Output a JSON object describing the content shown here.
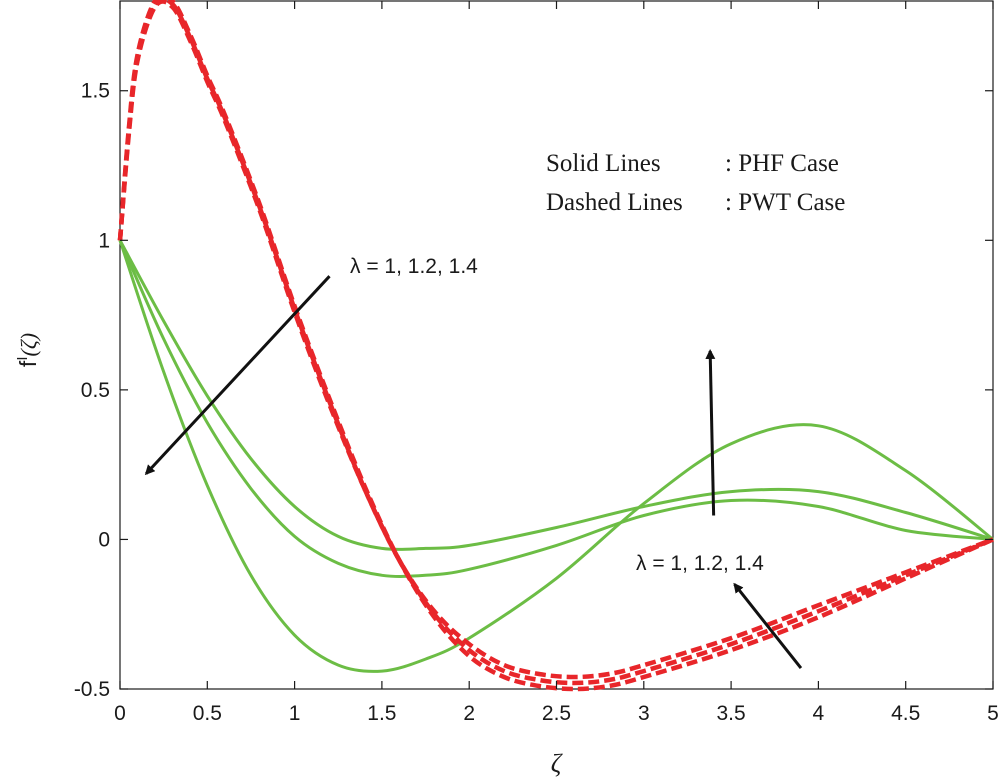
{
  "chart_data": {
    "type": "line",
    "title": "",
    "xlabel": "ζ",
    "ylabel": "f'(ζ)",
    "ylabel_base": "f",
    "ylabel_sup": "I",
    "ylabel_arg": "(ζ)",
    "xlim": [
      0,
      5
    ],
    "ylim": [
      -0.5,
      1.8
    ],
    "xticks": [
      {
        "value": 0,
        "label": "0"
      },
      {
        "value": 0.5,
        "label": "0.5"
      },
      {
        "value": 1,
        "label": "1"
      },
      {
        "value": 1.5,
        "label": "1.5"
      },
      {
        "value": 2,
        "label": "2"
      },
      {
        "value": 2.5,
        "label": "2.5"
      },
      {
        "value": 3,
        "label": "3"
      },
      {
        "value": 3.5,
        "label": "3.5"
      },
      {
        "value": 4,
        "label": "4"
      },
      {
        "value": 4.5,
        "label": "4.5"
      },
      {
        "value": 5,
        "label": "5"
      }
    ],
    "yticks": [
      {
        "value": -0.5,
        "label": "-0.5"
      },
      {
        "value": 0,
        "label": "0"
      },
      {
        "value": 0.5,
        "label": "0.5"
      },
      {
        "value": 1,
        "label": "1"
      },
      {
        "value": 1.5,
        "label": "1.5"
      }
    ],
    "grid": false,
    "series": [
      {
        "group": "PHF",
        "style": "solid",
        "color": "#6cbd45",
        "x": [
          0,
          0.25,
          0.5,
          0.75,
          1.0,
          1.25,
          1.5,
          1.75,
          2.0,
          2.5,
          3.0,
          3.5,
          4.0,
          4.5,
          5.0
        ],
        "y": [
          1.0,
          0.73,
          0.48,
          0.27,
          0.11,
          0.01,
          -0.03,
          -0.03,
          -0.02,
          0.04,
          0.11,
          0.16,
          0.16,
          0.09,
          0.0
        ]
      },
      {
        "group": "PHF",
        "style": "solid",
        "color": "#6cbd45",
        "x": [
          0,
          0.25,
          0.5,
          0.75,
          1.0,
          1.25,
          1.5,
          1.75,
          2.0,
          2.5,
          3.0,
          3.5,
          4.0,
          4.5,
          5.0
        ],
        "y": [
          1.0,
          0.67,
          0.39,
          0.17,
          0.01,
          -0.08,
          -0.12,
          -0.12,
          -0.1,
          -0.02,
          0.08,
          0.13,
          0.11,
          0.03,
          0.0
        ]
      },
      {
        "group": "PHF",
        "style": "solid",
        "color": "#6cbd45",
        "x": [
          0,
          0.25,
          0.5,
          0.75,
          1.0,
          1.25,
          1.5,
          1.75,
          2.0,
          2.5,
          3.0,
          3.5,
          4.0,
          4.5,
          5.0
        ],
        "y": [
          1.0,
          0.56,
          0.18,
          -0.12,
          -0.32,
          -0.42,
          -0.44,
          -0.4,
          -0.33,
          -0.13,
          0.12,
          0.32,
          0.38,
          0.23,
          0.0
        ]
      },
      {
        "group": "PWT",
        "style": "dashed",
        "color": "#e8262a",
        "x": [
          0,
          0.05,
          0.1,
          0.2,
          0.3,
          0.4,
          0.5,
          0.6,
          0.8,
          1.0,
          1.2,
          1.4,
          1.6,
          1.8,
          2.0,
          2.2,
          2.4,
          2.6,
          2.8,
          3.0,
          3.5,
          4.0,
          4.5,
          5.0
        ],
        "y": [
          1.0,
          1.35,
          1.6,
          1.78,
          1.78,
          1.67,
          1.53,
          1.4,
          1.1,
          0.76,
          0.45,
          0.17,
          -0.07,
          -0.24,
          -0.35,
          -0.42,
          -0.45,
          -0.46,
          -0.45,
          -0.42,
          -0.33,
          -0.22,
          -0.11,
          0.0
        ]
      },
      {
        "group": "PWT",
        "style": "dashed",
        "color": "#e8262a",
        "x": [
          0,
          0.05,
          0.1,
          0.2,
          0.3,
          0.4,
          0.5,
          0.6,
          0.8,
          1.0,
          1.2,
          1.4,
          1.6,
          1.8,
          2.0,
          2.2,
          2.4,
          2.6,
          2.8,
          3.0,
          3.5,
          4.0,
          4.5,
          5.0
        ],
        "y": [
          1.0,
          1.36,
          1.61,
          1.79,
          1.79,
          1.68,
          1.54,
          1.41,
          1.11,
          0.77,
          0.46,
          0.17,
          -0.07,
          -0.25,
          -0.37,
          -0.44,
          -0.47,
          -0.48,
          -0.47,
          -0.44,
          -0.35,
          -0.24,
          -0.12,
          0.0
        ]
      },
      {
        "group": "PWT",
        "style": "dashed",
        "color": "#e8262a",
        "x": [
          0,
          0.05,
          0.1,
          0.2,
          0.3,
          0.4,
          0.5,
          0.6,
          0.8,
          1.0,
          1.2,
          1.4,
          1.6,
          1.8,
          2.0,
          2.2,
          2.4,
          2.6,
          2.8,
          3.0,
          3.5,
          4.0,
          4.5,
          5.0
        ],
        "y": [
          1.0,
          1.37,
          1.62,
          1.8,
          1.8,
          1.69,
          1.55,
          1.42,
          1.12,
          0.78,
          0.47,
          0.18,
          -0.07,
          -0.26,
          -0.39,
          -0.46,
          -0.49,
          -0.5,
          -0.49,
          -0.46,
          -0.37,
          -0.26,
          -0.13,
          0.0
        ]
      }
    ],
    "notes": {
      "solid_label": "Solid Lines",
      "solid_value": ": PHF Case",
      "dashed_label": "Dashed Lines",
      "dashed_value": ": PWT Case"
    },
    "annotations": [
      {
        "text": "λ = 1, 1.2, 1.4",
        "arrow_from": [
          1.2,
          0.88
        ],
        "arrow_to": [
          0.15,
          0.22
        ]
      },
      {
        "text": "λ = 1, 1.2, 1.4",
        "arrow_from": [
          3.4,
          0.08
        ],
        "arrow_to": [
          3.38,
          0.63
        ]
      },
      {
        "text": "λ = 1, 1.2, 1.4",
        "arrow_from": [
          3.9,
          -0.43
        ],
        "arrow_to": [
          3.52,
          -0.15
        ]
      }
    ],
    "colors": {
      "phf": "#6cbd45",
      "pwt": "#e8262a",
      "axis": "#1a1a1a",
      "arrow": "#111111"
    }
  }
}
